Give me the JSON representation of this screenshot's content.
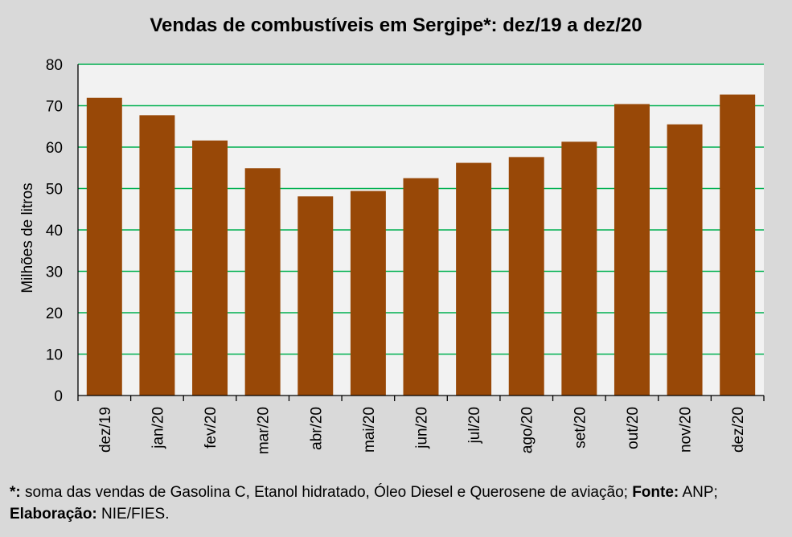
{
  "chart_data": {
    "type": "bar",
    "title": "Vendas de combustíveis em Sergipe*: dez/19 a dez/20",
    "xlabel": "",
    "ylabel": "Milhões de litros",
    "ylim": [
      0,
      80
    ],
    "yticks": [
      0,
      10,
      20,
      30,
      40,
      50,
      60,
      70,
      80
    ],
    "categories": [
      "dez/19",
      "jan/20",
      "fev/20",
      "mar/20",
      "abr/20",
      "mai/20",
      "jun/20",
      "jul/20",
      "ago/20",
      "set/20",
      "out/20",
      "nov/20",
      "dez/20"
    ],
    "values": [
      71.9,
      67.7,
      61.6,
      54.9,
      48.1,
      49.4,
      52.5,
      56.2,
      57.6,
      61.3,
      70.4,
      65.5,
      72.7
    ],
    "bar_color": "#984807",
    "grid_color": "#00b050",
    "plot_background": "#f2f2f2",
    "grid": true
  },
  "footnote": {
    "line1_marker": "*:",
    "line1_text": " soma das vendas de Gasolina C, Etanol hidratado, Óleo Diesel e Querosene de aviação; ",
    "source_label": "Fonte:",
    "source_value": " ANP;",
    "elaboration_label": "Elaboração:",
    "elaboration_value": " NIE/FIES."
  }
}
